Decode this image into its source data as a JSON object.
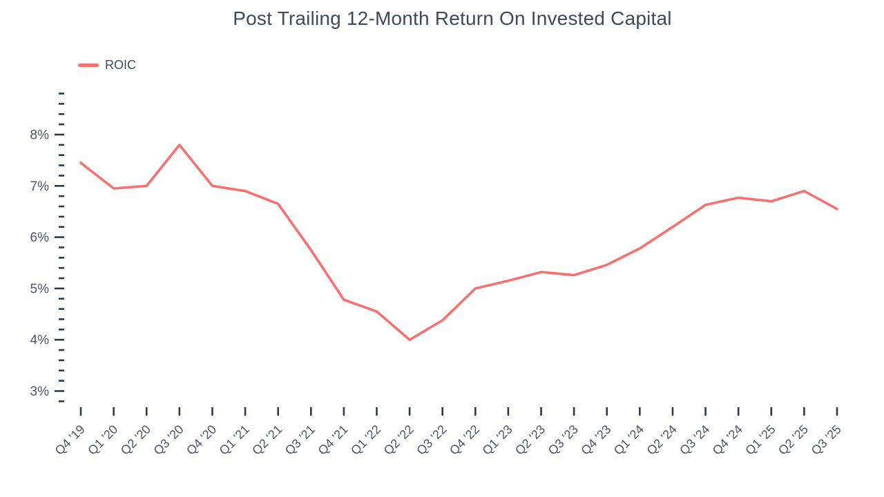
{
  "title": "Post Trailing 12-Month Return On Invested Capital",
  "legend": {
    "items": [
      {
        "label": "ROIC",
        "color": "#f87171"
      }
    ]
  },
  "colors": {
    "line": "#f87171",
    "title_text": "#3d4a5c",
    "axis_label_text": "#4b5563",
    "tick_mark": "#2d3748",
    "background": "#ffffff"
  },
  "chart_data": {
    "type": "line",
    "title": "Post Trailing 12-Month Return On Invested Capital",
    "categories": [
      "Q4 '19",
      "Q1 '20",
      "Q2 '20",
      "Q3 '20",
      "Q4 '20",
      "Q1 '21",
      "Q2 '21",
      "Q3 '21",
      "Q4 '21",
      "Q1 '22",
      "Q2 '22",
      "Q3 '22",
      "Q4 '22",
      "Q1 '23",
      "Q2 '23",
      "Q3 '23",
      "Q4 '23",
      "Q1 '24",
      "Q2 '24",
      "Q3 '24",
      "Q4 '24",
      "Q1 '25",
      "Q2 '25",
      "Q3 '25"
    ],
    "series": [
      {
        "name": "ROIC",
        "color": "#f87171",
        "values": [
          7.45,
          6.95,
          7.0,
          7.8,
          7.0,
          6.9,
          6.65,
          5.75,
          4.78,
          4.55,
          4.0,
          4.38,
          5.0,
          5.15,
          5.32,
          5.26,
          5.46,
          5.78,
          6.2,
          6.63,
          6.77,
          6.7,
          6.9,
          6.55
        ]
      }
    ],
    "xlabel": "",
    "ylabel": "",
    "yticks": [
      3,
      4,
      5,
      6,
      7,
      8
    ],
    "ytick_labels": [
      "3%",
      "4%",
      "5%",
      "6%",
      "7%",
      "8%"
    ],
    "ylim": [
      2.8,
      8.8
    ],
    "minor_tick_step": 0.2,
    "grid": false,
    "legend_position": "top-left"
  }
}
